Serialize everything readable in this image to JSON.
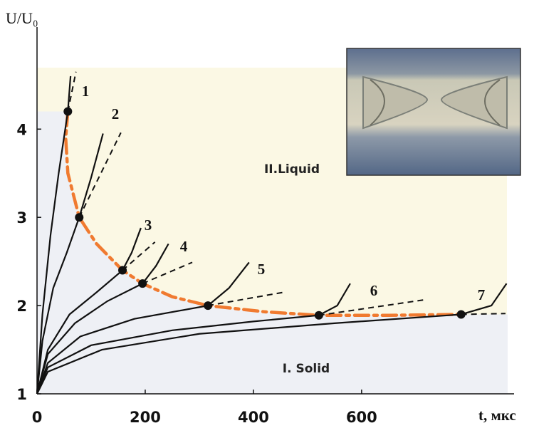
{
  "chart_data": {
    "type": "line",
    "ylabel": "U/U₀",
    "xlabel": "t, мкс",
    "xlim": [
      0,
      870
    ],
    "ylim": [
      1,
      5.1
    ],
    "xticks": [
      0,
      200,
      400,
      600
    ],
    "yticks": [
      1,
      2,
      3,
      4
    ],
    "region_labels": [
      "II.Liquid",
      "I. Solid"
    ],
    "series": [
      {
        "name": "1",
        "color": "#111111",
        "x": [
          0,
          10,
          25,
          40,
          57,
          62
        ],
        "values": [
          1,
          1.9,
          2.8,
          3.5,
          4.2,
          4.6
        ]
      },
      {
        "name": "2",
        "color": "#111111",
        "x": [
          0,
          10,
          30,
          55,
          78,
          100,
          122
        ],
        "values": [
          1,
          1.6,
          2.2,
          2.6,
          3.0,
          3.45,
          3.95
        ]
      },
      {
        "name": "3",
        "color": "#111111",
        "x": [
          0,
          20,
          60,
          110,
          158,
          175,
          192
        ],
        "values": [
          1,
          1.5,
          1.9,
          2.15,
          2.4,
          2.6,
          2.88
        ]
      },
      {
        "name": "4",
        "color": "#111111",
        "x": [
          0,
          20,
          70,
          130,
          195,
          220,
          243
        ],
        "values": [
          1,
          1.45,
          1.8,
          2.05,
          2.25,
          2.45,
          2.7
        ]
      },
      {
        "name": "5",
        "color": "#111111",
        "x": [
          0,
          20,
          80,
          180,
          316,
          355,
          392
        ],
        "values": [
          1,
          1.35,
          1.65,
          1.85,
          2.0,
          2.2,
          2.49
        ]
      },
      {
        "name": "6",
        "color": "#111111",
        "x": [
          0,
          20,
          100,
          250,
          400,
          521,
          555,
          579
        ],
        "values": [
          1,
          1.3,
          1.55,
          1.72,
          1.82,
          1.89,
          2.0,
          2.25
        ]
      },
      {
        "name": "7",
        "color": "#111111",
        "x": [
          0,
          20,
          120,
          300,
          550,
          784,
          840,
          868
        ],
        "values": [
          1,
          1.25,
          1.5,
          1.68,
          1.8,
          1.9,
          2.0,
          2.25
        ]
      }
    ],
    "tangents": [
      {
        "x": [
          57,
          72
        ],
        "values": [
          4.2,
          4.65
        ]
      },
      {
        "x": [
          78,
          155
        ],
        "values": [
          3.0,
          3.96
        ]
      },
      {
        "x": [
          158,
          218
        ],
        "values": [
          2.4,
          2.72
        ]
      },
      {
        "x": [
          195,
          287
        ],
        "values": [
          2.25,
          2.49
        ]
      },
      {
        "x": [
          316,
          455
        ],
        "values": [
          2.0,
          2.15
        ]
      },
      {
        "x": [
          521,
          721
        ],
        "values": [
          1.89,
          2.07
        ]
      },
      {
        "x": [
          784,
          866
        ],
        "values": [
          1.9,
          1.91
        ]
      }
    ],
    "points": {
      "color": "#111111",
      "x": [
        57,
        78,
        158,
        195,
        316,
        521,
        784
      ],
      "values": [
        4.2,
        3.0,
        2.4,
        2.25,
        2.0,
        1.89,
        1.9
      ]
    },
    "boundary": {
      "color": "#f07a30",
      "x": [
        57,
        53,
        57,
        78,
        110,
        158,
        195,
        250,
        316,
        420,
        521,
        650,
        784
      ],
      "values": [
        4.2,
        3.9,
        3.5,
        3.0,
        2.7,
        2.4,
        2.25,
        2.1,
        2.0,
        1.93,
        1.89,
        1.89,
        1.9
      ]
    }
  }
}
